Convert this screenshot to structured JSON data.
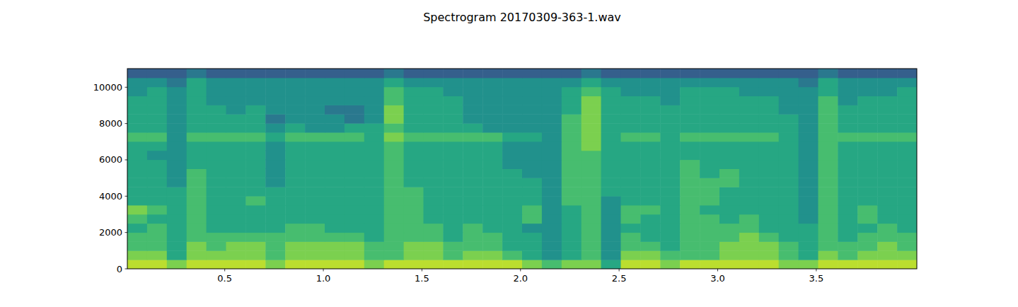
{
  "chart_data": {
    "type": "heatmap",
    "title": "Spectrogram 20170309-363-1.wav",
    "xlim": [
      0.006,
      4.01
    ],
    "ylim": [
      0,
      11025
    ],
    "xticks": [
      0.5,
      {
        "value": 1,
        "label": "1.0"
      },
      1.5,
      {
        "value": 2,
        "label": "2.0"
      },
      2.5,
      {
        "value": 3,
        "label": "3.0"
      },
      3.5
    ],
    "yticks": [
      0,
      2000,
      4000,
      6000,
      8000,
      10000
    ],
    "color": "viridis",
    "color_range": [
      0,
      10
    ],
    "cells": [
      [
        9,
        9,
        8,
        9,
        9,
        9,
        9,
        8,
        9,
        9,
        9,
        9,
        8,
        9,
        9,
        9,
        9,
        9,
        9,
        9,
        8,
        7,
        8,
        8,
        6,
        9,
        9,
        8,
        9,
        9,
        9,
        9,
        9,
        8,
        8,
        9,
        9,
        9,
        9,
        9
      ],
      [
        8,
        8,
        6,
        8,
        8,
        8,
        8,
        7,
        8,
        8,
        8,
        8,
        7,
        7,
        8,
        8,
        7,
        8,
        8,
        7,
        6,
        5,
        6,
        7,
        5,
        8,
        8,
        7,
        7,
        7,
        8,
        8,
        8,
        7,
        6,
        8,
        7,
        8,
        8,
        8
      ],
      [
        7,
        7,
        6,
        8,
        7,
        8,
        8,
        7,
        8,
        8,
        8,
        8,
        7,
        7,
        8,
        8,
        7,
        7,
        7,
        6,
        6,
        5,
        6,
        7,
        5,
        7,
        7,
        6,
        7,
        7,
        8,
        8,
        8,
        7,
        6,
        7,
        7,
        7,
        8,
        7
      ],
      [
        7,
        7,
        6,
        7,
        7,
        7,
        7,
        7,
        7,
        7,
        7,
        7,
        6,
        7,
        7,
        7,
        6,
        7,
        7,
        6,
        6,
        5,
        6,
        7,
        5,
        7,
        6,
        6,
        7,
        7,
        7,
        8,
        7,
        6,
        6,
        7,
        6,
        7,
        7,
        7
      ],
      [
        6,
        7,
        6,
        7,
        6,
        6,
        6,
        6,
        7,
        7,
        6,
        6,
        6,
        7,
        7,
        7,
        6,
        7,
        6,
        6,
        5,
        5,
        6,
        7,
        5,
        6,
        6,
        6,
        7,
        7,
        7,
        7,
        6,
        6,
        6,
        7,
        6,
        6,
        7,
        6
      ],
      [
        7,
        6,
        6,
        7,
        6,
        6,
        6,
        6,
        6,
        6,
        6,
        6,
        6,
        7,
        7,
        6,
        6,
        6,
        6,
        6,
        7,
        5,
        6,
        7,
        5,
        7,
        6,
        6,
        7,
        7,
        6,
        7,
        6,
        6,
        5,
        7,
        6,
        7,
        6,
        6
      ],
      [
        8,
        7,
        6,
        7,
        6,
        6,
        6,
        6,
        6,
        6,
        6,
        6,
        6,
        7,
        7,
        6,
        6,
        6,
        6,
        6,
        7,
        5,
        6,
        7,
        5,
        7,
        7,
        6,
        7,
        6,
        6,
        6,
        6,
        6,
        5,
        7,
        6,
        7,
        6,
        6
      ],
      [
        6,
        6,
        6,
        7,
        6,
        6,
        7,
        6,
        6,
        6,
        6,
        6,
        6,
        7,
        7,
        6,
        6,
        6,
        6,
        6,
        6,
        5,
        7,
        7,
        5,
        6,
        6,
        6,
        7,
        7,
        6,
        6,
        6,
        6,
        5,
        7,
        6,
        6,
        6,
        6
      ],
      [
        6,
        6,
        6,
        7,
        6,
        6,
        6,
        6,
        6,
        6,
        6,
        6,
        6,
        7,
        7,
        6,
        6,
        6,
        6,
        6,
        6,
        5,
        7,
        7,
        6,
        6,
        6,
        6,
        7,
        7,
        6,
        6,
        6,
        6,
        5,
        7,
        6,
        6,
        6,
        6
      ],
      [
        6,
        6,
        5,
        7,
        6,
        6,
        6,
        5,
        6,
        6,
        6,
        6,
        6,
        7,
        6,
        6,
        6,
        6,
        6,
        6,
        6,
        5,
        7,
        7,
        6,
        6,
        6,
        6,
        7,
        7,
        7,
        6,
        6,
        6,
        5,
        7,
        6,
        6,
        6,
        6
      ],
      [
        6,
        6,
        5,
        7,
        6,
        6,
        6,
        5,
        6,
        6,
        6,
        6,
        6,
        7,
        6,
        6,
        6,
        6,
        6,
        6,
        5,
        5,
        7,
        7,
        6,
        6,
        6,
        6,
        7,
        6,
        7,
        6,
        6,
        6,
        5,
        7,
        6,
        6,
        6,
        6
      ],
      [
        6,
        6,
        5,
        6,
        6,
        6,
        6,
        5,
        6,
        6,
        6,
        6,
        6,
        7,
        6,
        6,
        6,
        6,
        6,
        5,
        5,
        5,
        7,
        7,
        6,
        6,
        6,
        6,
        7,
        6,
        6,
        6,
        6,
        6,
        5,
        7,
        6,
        6,
        6,
        6
      ],
      [
        6,
        5,
        5,
        6,
        6,
        6,
        6,
        5,
        6,
        6,
        6,
        6,
        6,
        7,
        6,
        6,
        6,
        6,
        6,
        5,
        5,
        5,
        7,
        7,
        6,
        6,
        6,
        6,
        6,
        6,
        6,
        6,
        6,
        6,
        5,
        7,
        6,
        6,
        6,
        6
      ],
      [
        6,
        6,
        5,
        6,
        6,
        6,
        6,
        5,
        6,
        6,
        6,
        6,
        6,
        7,
        6,
        6,
        6,
        6,
        6,
        5,
        5,
        5,
        7,
        8,
        6,
        6,
        6,
        6,
        6,
        6,
        6,
        6,
        6,
        6,
        5,
        7,
        6,
        6,
        6,
        6
      ],
      [
        7,
        7,
        5,
        7,
        7,
        7,
        7,
        6,
        7,
        7,
        7,
        7,
        6,
        8,
        7,
        7,
        7,
        7,
        7,
        6,
        6,
        5,
        7,
        8,
        6,
        7,
        7,
        6,
        7,
        7,
        7,
        7,
        7,
        6,
        5,
        7,
        7,
        7,
        7,
        7
      ],
      [
        6,
        6,
        5,
        6,
        6,
        6,
        6,
        5,
        6,
        5,
        5,
        6,
        6,
        7,
        6,
        6,
        6,
        6,
        5,
        5,
        5,
        5,
        7,
        8,
        6,
        6,
        6,
        6,
        6,
        6,
        6,
        6,
        6,
        6,
        5,
        7,
        6,
        6,
        6,
        6
      ],
      [
        6,
        6,
        5,
        6,
        6,
        6,
        6,
        4,
        5,
        5,
        5,
        4,
        5,
        8,
        6,
        6,
        6,
        5,
        5,
        5,
        5,
        5,
        7,
        8,
        6,
        6,
        6,
        6,
        6,
        6,
        6,
        6,
        6,
        6,
        5,
        7,
        6,
        6,
        6,
        6
      ],
      [
        6,
        6,
        5,
        6,
        6,
        5,
        6,
        5,
        5,
        5,
        4,
        4,
        5,
        8,
        6,
        6,
        6,
        5,
        5,
        5,
        5,
        5,
        6,
        8,
        6,
        6,
        6,
        6,
        6,
        6,
        6,
        6,
        6,
        5,
        5,
        7,
        6,
        6,
        6,
        6
      ],
      [
        6,
        6,
        5,
        6,
        5,
        5,
        5,
        5,
        5,
        5,
        5,
        5,
        5,
        7,
        6,
        6,
        6,
        5,
        5,
        5,
        5,
        5,
        6,
        8,
        6,
        6,
        6,
        5,
        6,
        6,
        6,
        6,
        6,
        5,
        5,
        7,
        5,
        6,
        6,
        6
      ],
      [
        5,
        6,
        5,
        6,
        5,
        5,
        5,
        5,
        5,
        5,
        5,
        5,
        5,
        7,
        6,
        6,
        5,
        5,
        5,
        5,
        5,
        5,
        6,
        7,
        6,
        5,
        5,
        5,
        6,
        6,
        6,
        5,
        5,
        5,
        5,
        6,
        5,
        5,
        5,
        6
      ],
      [
        5,
        5,
        4,
        6,
        5,
        5,
        5,
        5,
        5,
        5,
        5,
        5,
        5,
        6,
        5,
        5,
        5,
        5,
        5,
        5,
        5,
        5,
        5,
        6,
        5,
        5,
        5,
        5,
        5,
        5,
        5,
        5,
        5,
        5,
        4,
        6,
        5,
        5,
        5,
        5
      ],
      [
        3,
        3,
        3,
        4,
        3,
        3,
        3,
        3,
        3,
        3,
        3,
        3,
        3,
        4,
        3,
        3,
        3,
        3,
        3,
        3,
        3,
        3,
        3,
        4,
        3,
        3,
        3,
        3,
        3,
        3,
        3,
        3,
        3,
        3,
        3,
        4,
        3,
        3,
        3,
        3
      ]
    ]
  }
}
